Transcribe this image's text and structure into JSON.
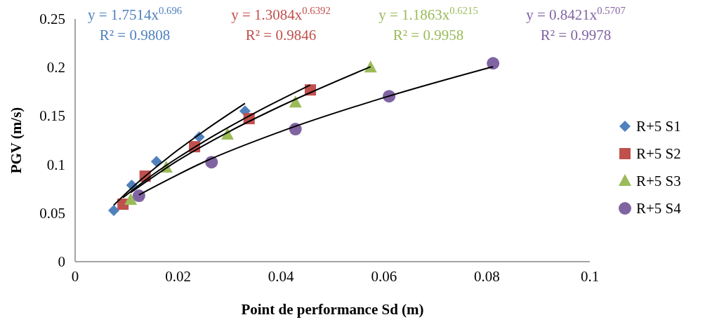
{
  "chart_data": {
    "type": "scatter",
    "xlabel": "Point de performance Sd (m)",
    "ylabel": "PGV (m/s)",
    "xlim": [
      0,
      0.1
    ],
    "xticks": [
      0,
      0.02,
      0.04,
      0.06,
      0.08,
      0.1
    ],
    "ylim": [
      0,
      0.25
    ],
    "yticks": [
      0,
      0.05,
      0.1,
      0.15,
      0.2,
      0.25
    ],
    "grid": false,
    "legend": "right",
    "series": [
      {
        "name": "R+5 S1",
        "color": "#4f81bd",
        "marker": "diamond",
        "x": [
          0.0075,
          0.011,
          0.0158,
          0.0241,
          0.033
        ],
        "values": [
          0.0527,
          0.0787,
          0.1032,
          0.1285,
          0.1552
        ]
      },
      {
        "name": "R+5 S2",
        "color": "#c0504d",
        "marker": "square",
        "x": [
          0.0093,
          0.0136,
          0.0232,
          0.0338,
          0.0457
        ],
        "values": [
          0.0592,
          0.0881,
          0.1184,
          0.1473,
          0.1769
        ]
      },
      {
        "name": "R+5 S3",
        "color": "#9bbb59",
        "marker": "triangle",
        "x": [
          0.0108,
          0.0177,
          0.0296,
          0.0428,
          0.0574
        ],
        "values": [
          0.0635,
          0.0968,
          0.1307,
          0.1639,
          0.2
        ]
      },
      {
        "name": "R+5  S4",
        "color": "#8064a2",
        "marker": "circle",
        "x": [
          0.0124,
          0.0265,
          0.0428,
          0.061,
          0.0812
        ],
        "values": [
          0.0679,
          0.1025,
          0.1365,
          0.1704,
          0.2043
        ]
      },
      {
        "type": "line",
        "color": "#000000",
        "marker": "none",
        "x": [
          0.0075,
          0.012,
          0.018,
          0.025,
          0.033
        ],
        "values": [
          0.0582,
          0.0807,
          0.107,
          0.1344,
          0.163
        ]
      },
      {
        "type": "line",
        "color": "#000000",
        "marker": "none",
        "x": [
          0.0093,
          0.015,
          0.025,
          0.035,
          0.0457
        ],
        "values": [
          0.0659,
          0.0892,
          0.1237,
          0.1535,
          0.182
        ]
      },
      {
        "type": "line",
        "color": "#000000",
        "marker": "none",
        "x": [
          0.0108,
          0.02,
          0.03,
          0.04,
          0.0574
        ],
        "values": [
          0.0712,
          0.1043,
          0.1342,
          0.1604,
          0.2008
        ]
      },
      {
        "type": "line",
        "color": "#000000",
        "marker": "none",
        "x": [
          0.0124,
          0.025,
          0.04,
          0.06,
          0.0812
        ],
        "values": [
          0.0688,
          0.1026,
          0.1341,
          0.169,
          0.2009
        ]
      }
    ],
    "annotations": [
      "y = 1.7514x$^{0.696}$",
      "R² = 0.9808",
      "y = 1.3084x$^{0.6392}$",
      "R² = 0.9846",
      "y = 1.1863x$^{0.6215}$",
      "R² = 0.9958",
      "y = 0.8421x$^{0.5707}$",
      "R² = 0.9978"
    ]
  }
}
